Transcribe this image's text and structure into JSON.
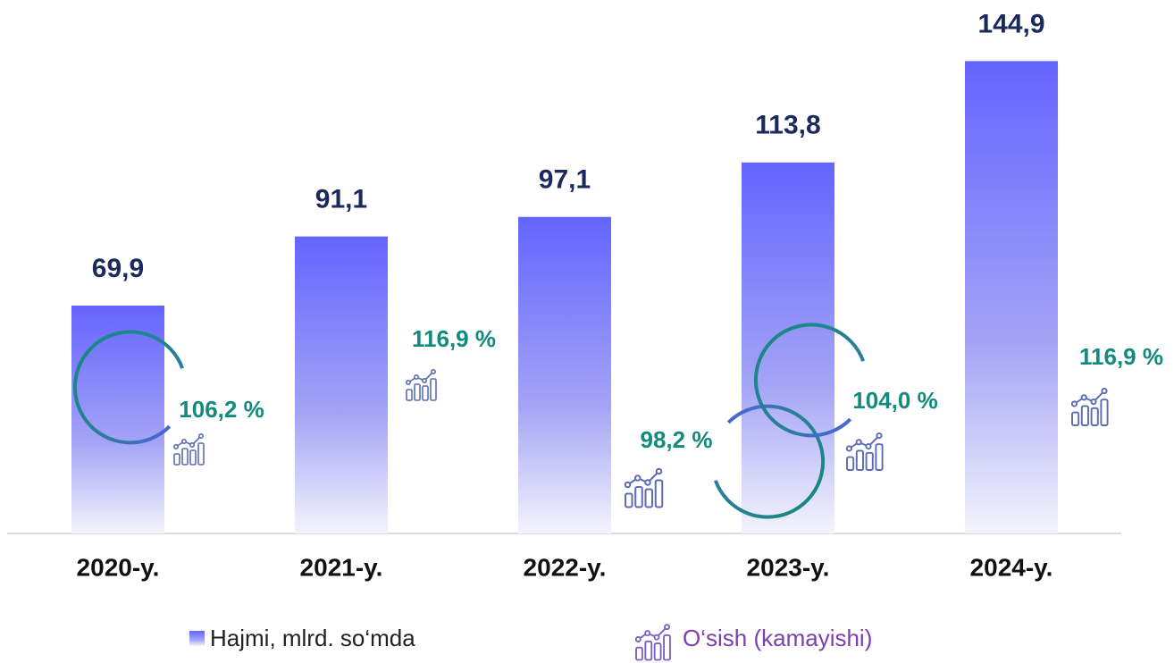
{
  "chart_data": {
    "type": "bar",
    "categories": [
      "2020-y.",
      "2021-y.",
      "2022-y.",
      "2023-y.",
      "2024-y."
    ],
    "series": [
      {
        "name": "Hajmi, mlrd. so‘mda",
        "color": "#6464ff",
        "values": [
          69.9,
          91.1,
          97.1,
          113.8,
          144.9
        ],
        "value_labels": [
          "69,9",
          "91,1",
          "97,1",
          "113,8",
          "144,9"
        ]
      },
      {
        "name": "O‘sish (kamayishi)",
        "color": "#138a7e",
        "values": [
          106.2,
          116.9,
          98.2,
          104.0,
          116.9
        ],
        "value_labels": [
          "106,2 %",
          "116,9 %",
          "98,2 %",
          "104,0 %",
          "116,9 %"
        ]
      }
    ],
    "ylim": [
      0,
      145
    ]
  }
}
